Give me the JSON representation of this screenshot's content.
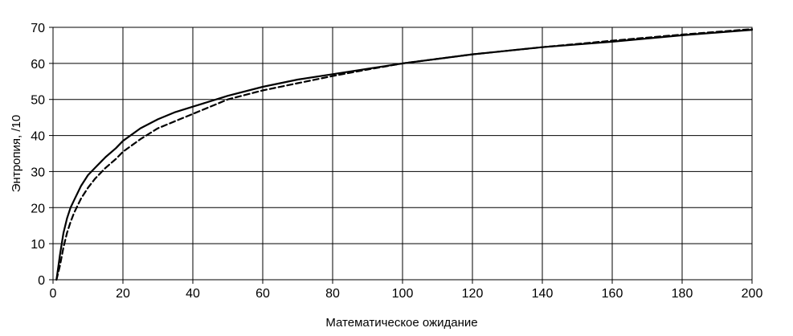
{
  "chart_data": {
    "type": "line",
    "title": "",
    "xlabel": "Математическое ожидание",
    "ylabel": "Энтропия, /10",
    "xlim": [
      0,
      200
    ],
    "ylim": [
      0,
      70
    ],
    "x_ticks": [
      0,
      20,
      40,
      60,
      80,
      100,
      120,
      140,
      160,
      180,
      200
    ],
    "y_ticks": [
      0,
      10,
      20,
      30,
      40,
      50,
      60,
      70
    ],
    "grid": true,
    "legend": "none",
    "colors": {
      "series": "#000000",
      "grid": "#000000",
      "background": "#ffffff"
    },
    "series": [
      {
        "style": "solid",
        "x": [
          1,
          2,
          3,
          4,
          5,
          6,
          8,
          10,
          12,
          15,
          18,
          20,
          25,
          30,
          35,
          40,
          50,
          60,
          70,
          80,
          90,
          100,
          120,
          140,
          160,
          180,
          200
        ],
        "y": [
          0,
          7,
          13,
          17,
          20,
          22,
          26,
          29,
          31,
          34,
          36.5,
          38.5,
          42,
          44.5,
          46.5,
          48,
          51,
          53.5,
          55.5,
          57,
          58.5,
          60,
          62.5,
          64.5,
          66,
          67.8,
          69.3
        ]
      },
      {
        "style": "dashed",
        "x": [
          1,
          2,
          3,
          4,
          5,
          6,
          8,
          10,
          12,
          15,
          18,
          20,
          25,
          30,
          35,
          40,
          50,
          60,
          70,
          80,
          90,
          100,
          120,
          140,
          160,
          180,
          200
        ],
        "y": [
          0,
          4,
          9,
          13,
          16,
          18.5,
          22.5,
          25.5,
          28,
          31,
          33.5,
          35.5,
          39,
          42,
          44,
          46,
          50,
          52.5,
          54.5,
          56.5,
          58.3,
          60,
          62.5,
          64.5,
          66.3,
          68,
          69.5
        ]
      }
    ]
  }
}
